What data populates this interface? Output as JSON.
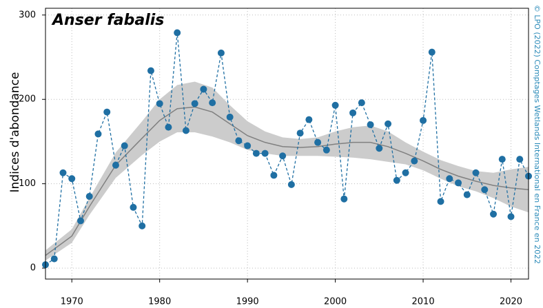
{
  "chart_data": {
    "type": "scatter",
    "title": "Anser fabalis",
    "y_label": "Indices d'abondance",
    "credit": "© LPO (2022) Comptages Wetlands International en France en 2022",
    "x": [
      1967,
      1968,
      1969,
      1970,
      1971,
      1972,
      1973,
      1974,
      1975,
      1976,
      1977,
      1978,
      1979,
      1980,
      1981,
      1982,
      1983,
      1984,
      1985,
      1986,
      1987,
      1988,
      1989,
      1990,
      1991,
      1992,
      1993,
      1994,
      1995,
      1996,
      1997,
      1998,
      1999,
      2000,
      2001,
      2002,
      2003,
      2004,
      2005,
      2006,
      2007,
      2008,
      2009,
      2010,
      2011,
      2012,
      2013,
      2014,
      2015,
      2016,
      2017,
      2018,
      2019,
      2020,
      2021,
      2022
    ],
    "values": [
      4,
      11,
      113,
      106,
      56,
      85,
      159,
      185,
      122,
      145,
      72,
      50,
      234,
      195,
      167,
      279,
      163,
      195,
      212,
      196,
      255,
      179,
      151,
      145,
      136,
      136,
      110,
      133,
      99,
      160,
      176,
      149,
      140,
      193,
      82,
      184,
      196,
      170,
      142,
      171,
      104,
      113,
      127,
      175,
      256,
      79,
      106,
      101,
      87,
      113,
      93,
      64,
      129,
      61,
      129,
      109
    ],
    "color": "#1f6fa3",
    "trend": {
      "x": [
        1967,
        1970,
        1972,
        1975,
        1978,
        1980,
        1982,
        1984,
        1986,
        1988,
        1990,
        1992,
        1994,
        1996,
        1998,
        2000,
        2002,
        2004,
        2006,
        2008,
        2010,
        2012,
        2014,
        2016,
        2018,
        2020,
        2022
      ],
      "values": [
        15,
        38,
        73,
        122,
        154,
        175,
        189,
        191,
        185,
        171,
        157,
        149,
        144,
        143,
        144,
        147,
        149,
        149,
        144,
        136,
        127,
        117,
        109,
        103,
        98,
        95,
        93
      ],
      "lower": [
        9,
        30,
        63,
        107,
        134,
        150,
        161,
        161,
        156,
        149,
        140,
        136,
        133,
        133,
        133,
        132,
        131,
        129,
        126,
        123,
        116,
        106,
        97,
        91,
        83,
        73,
        66
      ],
      "upper": [
        21,
        46,
        83,
        137,
        174,
        200,
        217,
        221,
        214,
        193,
        174,
        162,
        155,
        153,
        155,
        162,
        167,
        169,
        162,
        149,
        138,
        128,
        121,
        115,
        113,
        117,
        120
      ],
      "color": "#808080",
      "band_color": "#cccccc"
    },
    "xlim": [
      1967,
      2022
    ],
    "ylim": [
      -13,
      308
    ],
    "xticks": [
      1970,
      1980,
      1990,
      2000,
      2010,
      2020
    ],
    "yticks": [
      0,
      100,
      200,
      300
    ],
    "grid": true
  }
}
